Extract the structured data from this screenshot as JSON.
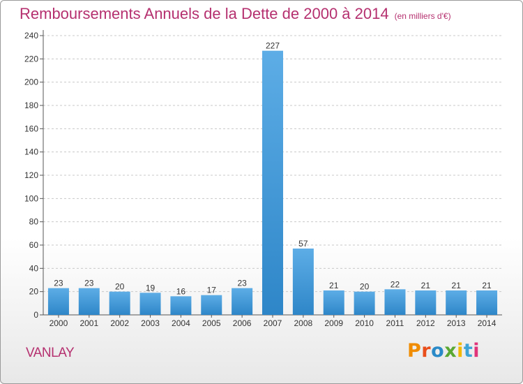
{
  "header": {
    "title": "Remboursements Annuels de la Dette de 2000 à 2014",
    "unit": "(en milliers d'€)"
  },
  "footer": {
    "commune": "VANLAY",
    "logo_letters": [
      "P",
      "r",
      "o",
      "x",
      "i",
      "t",
      "i"
    ],
    "logo_colors": [
      "#f08c00",
      "#e94e1b",
      "#2a8ac8",
      "#5aa832",
      "#f2b800",
      "#3da3d6",
      "#e0347a"
    ]
  },
  "colors": {
    "bar_top": "#5dade6",
    "bar_bottom": "#2e86c8",
    "accent": "#b5306f",
    "grid": "#c8c8c8"
  },
  "chart_data": {
    "type": "bar",
    "categories": [
      "2000",
      "2001",
      "2002",
      "2003",
      "2004",
      "2005",
      "2006",
      "2007",
      "2008",
      "2009",
      "2010",
      "2011",
      "2012",
      "2013",
      "2014"
    ],
    "values": [
      23,
      23,
      20,
      19,
      16,
      17,
      23,
      227,
      57,
      21,
      20,
      22,
      21,
      21,
      21
    ],
    "ylim": [
      0,
      240
    ],
    "yticks": [
      0,
      20,
      40,
      60,
      80,
      100,
      120,
      140,
      160,
      180,
      200,
      220,
      240
    ],
    "grid": true,
    "xlabel": "",
    "ylabel": ""
  }
}
